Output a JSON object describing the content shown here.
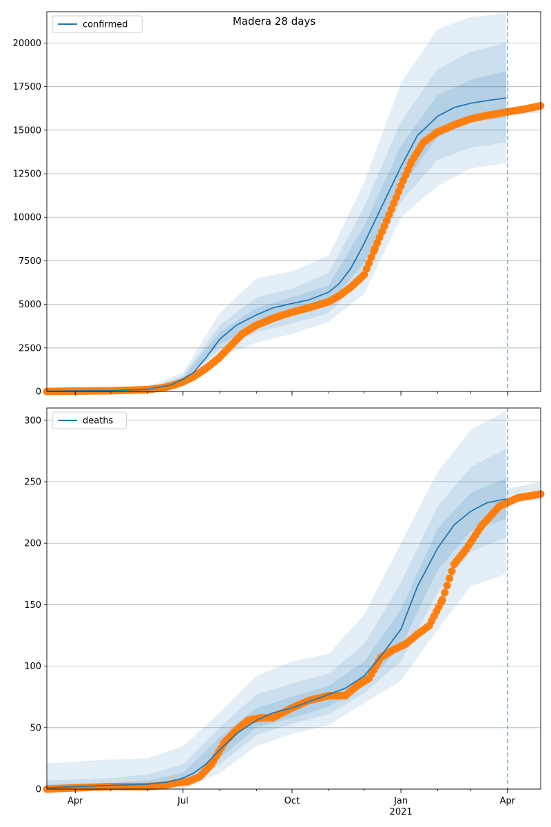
{
  "figure": {
    "title": "Madera 28 days"
  },
  "colors": {
    "model_line": "#1f77b4",
    "observed": "#ff7f0e",
    "band": "#1f77b4",
    "grid": "#b0b0b0",
    "forecast_line": "#1f77b4"
  },
  "forecast_start": "2021-04-01",
  "chart_data": [
    {
      "type": "line",
      "legend_label": "confirmed",
      "legend_position": "upper left",
      "grid": "horizontal",
      "xlim": [
        "2020-03-08",
        "2021-04-29"
      ],
      "ylim": [
        0,
        21800
      ],
      "yticks": [
        0,
        2500,
        5000,
        7500,
        10000,
        12500,
        15000,
        17500,
        20000
      ],
      "x_tick_labels": [],
      "model": {
        "name": "confirmed",
        "x": [
          "2020-03-08",
          "2020-04-01",
          "2020-05-01",
          "2020-06-01",
          "2020-06-20",
          "2020-07-01",
          "2020-07-10",
          "2020-07-20",
          "2020-08-01",
          "2020-08-15",
          "2020-09-01",
          "2020-09-15",
          "2020-10-01",
          "2020-10-15",
          "2020-11-01",
          "2020-11-10",
          "2020-11-20",
          "2020-12-01",
          "2020-12-15",
          "2021-01-01",
          "2021-01-15",
          "2021-02-01",
          "2021-02-15",
          "2021-03-01",
          "2021-03-15",
          "2021-03-31"
        ],
        "y": [
          20,
          30,
          50,
          120,
          350,
          700,
          1100,
          1900,
          3000,
          3800,
          4400,
          4800,
          5050,
          5250,
          5700,
          6200,
          7100,
          8500,
          10500,
          12900,
          14700,
          15800,
          16300,
          16550,
          16700,
          16850
        ]
      },
      "bands": [
        {
          "level": "outer",
          "x": [
            "2020-03-08",
            "2020-06-01",
            "2020-07-01",
            "2020-08-01",
            "2020-09-01",
            "2020-10-01",
            "2020-11-01",
            "2020-12-01",
            "2021-01-01",
            "2021-02-01",
            "2021-03-01",
            "2021-03-31"
          ],
          "low": [
            0,
            80,
            500,
            2000,
            2800,
            3300,
            4000,
            5600,
            10000,
            11800,
            12800,
            13100
          ],
          "high": [
            60,
            250,
            1100,
            4500,
            6500,
            6900,
            7800,
            12000,
            17700,
            20800,
            21500,
            21700
          ]
        },
        {
          "level": "middle",
          "x": [
            "2020-03-08",
            "2020-06-01",
            "2020-07-01",
            "2020-08-01",
            "2020-09-01",
            "2020-10-01",
            "2020-11-01",
            "2020-12-01",
            "2021-01-01",
            "2021-02-01",
            "2021-03-01",
            "2021-03-31"
          ],
          "low": [
            5,
            100,
            600,
            2400,
            3400,
            3900,
            4500,
            6700,
            10900,
            13300,
            14000,
            14300
          ],
          "high": [
            40,
            180,
            900,
            3800,
            5400,
            5900,
            6800,
            10600,
            15500,
            18500,
            19500,
            20000
          ]
        },
        {
          "level": "inner",
          "x": [
            "2020-03-08",
            "2020-06-01",
            "2020-07-01",
            "2020-08-01",
            "2020-09-01",
            "2020-10-01",
            "2020-11-01",
            "2020-12-01",
            "2021-01-01",
            "2021-02-01",
            "2021-03-01",
            "2021-03-31"
          ],
          "low": [
            10,
            110,
            650,
            2700,
            3800,
            4400,
            5000,
            7400,
            11700,
            14600,
            15500,
            15700
          ],
          "high": [
            30,
            150,
            800,
            3400,
            4800,
            5400,
            6100,
            9500,
            14100,
            17000,
            17900,
            18400
          ]
        }
      ],
      "future_band": {
        "x": [
          "2021-03-31",
          "2021-04-29"
        ],
        "low": [
          15900,
          16000
        ],
        "high": [
          16300,
          16500
        ]
      },
      "observed": {
        "name": "observed",
        "x": [
          "2020-03-08",
          "2020-04-01",
          "2020-05-01",
          "2020-06-01",
          "2020-06-15",
          "2020-06-25",
          "2020-07-01",
          "2020-07-10",
          "2020-07-20",
          "2020-07-31",
          "2020-08-10",
          "2020-08-20",
          "2020-09-01",
          "2020-09-15",
          "2020-10-01",
          "2020-10-15",
          "2020-11-01",
          "2020-11-10",
          "2020-11-20",
          "2020-12-01",
          "2020-12-10",
          "2020-12-20",
          "2021-01-01",
          "2021-01-10",
          "2021-01-20",
          "2021-02-01",
          "2021-02-15",
          "2021-03-01",
          "2021-03-15",
          "2021-04-01",
          "2021-04-15",
          "2021-04-29"
        ],
        "y": [
          0,
          20,
          40,
          100,
          220,
          400,
          550,
          850,
          1300,
          1900,
          2600,
          3300,
          3800,
          4200,
          4550,
          4800,
          5150,
          5500,
          6000,
          6700,
          8200,
          9800,
          11800,
          13200,
          14300,
          14900,
          15300,
          15650,
          15850,
          16050,
          16200,
          16400
        ]
      }
    },
    {
      "type": "line",
      "legend_label": "deaths",
      "legend_position": "upper left",
      "grid": "horizontal",
      "xlim": [
        "2020-03-08",
        "2021-04-29"
      ],
      "ylim": [
        0,
        310
      ],
      "yticks": [
        0,
        50,
        100,
        150,
        200,
        250,
        300
      ],
      "x_tick_labels": [
        {
          "date": "2020-04-01",
          "label": "Apr",
          "sub": ""
        },
        {
          "date": "2020-07-01",
          "label": "Jul",
          "sub": ""
        },
        {
          "date": "2020-10-01",
          "label": "Oct",
          "sub": ""
        },
        {
          "date": "2021-01-01",
          "label": "Jan",
          "sub": "2021"
        },
        {
          "date": "2021-04-01",
          "label": "Apr",
          "sub": ""
        }
      ],
      "model": {
        "name": "deaths",
        "x": [
          "2020-03-08",
          "2020-04-01",
          "2020-05-01",
          "2020-06-01",
          "2020-06-20",
          "2020-07-01",
          "2020-07-10",
          "2020-07-20",
          "2020-08-01",
          "2020-08-15",
          "2020-09-01",
          "2020-09-15",
          "2020-10-01",
          "2020-10-15",
          "2020-11-01",
          "2020-11-15",
          "2020-12-01",
          "2020-12-15",
          "2021-01-01",
          "2021-01-15",
          "2021-02-01",
          "2021-02-15",
          "2021-03-01",
          "2021-03-15",
          "2021-03-31"
        ],
        "y": [
          1,
          2,
          3,
          4,
          6,
          9,
          13,
          20,
          32,
          45,
          56,
          62,
          66,
          71,
          77,
          82,
          92,
          108,
          130,
          165,
          196,
          215,
          226,
          233,
          236
        ]
      },
      "bands": [
        {
          "level": "outer",
          "x": [
            "2020-03-08",
            "2020-05-01",
            "2020-06-01",
            "2020-07-01",
            "2020-08-01",
            "2020-09-01",
            "2020-10-01",
            "2020-11-01",
            "2020-12-01",
            "2021-01-01",
            "2021-02-01",
            "2021-03-01",
            "2021-03-31"
          ],
          "low": [
            0,
            0,
            0,
            0,
            13,
            35,
            45,
            52,
            70,
            88,
            130,
            165,
            175
          ],
          "high": [
            21,
            24,
            25,
            35,
            62,
            92,
            104,
            110,
            142,
            200,
            258,
            292,
            308
          ]
        },
        {
          "level": "middle",
          "x": [
            "2020-03-08",
            "2020-05-01",
            "2020-06-01",
            "2020-07-01",
            "2020-08-01",
            "2020-09-01",
            "2020-10-01",
            "2020-11-01",
            "2020-12-01",
            "2021-01-01",
            "2021-02-01",
            "2021-03-01",
            "2021-03-31"
          ],
          "low": [
            0,
            0,
            1,
            3,
            20,
            44,
            53,
            61,
            78,
            104,
            160,
            193,
            205
          ],
          "high": [
            7,
            9,
            12,
            20,
            50,
            77,
            86,
            94,
            118,
            168,
            230,
            262,
            277
          ]
        },
        {
          "level": "inner",
          "x": [
            "2020-03-08",
            "2020-05-01",
            "2020-06-01",
            "2020-07-01",
            "2020-08-01",
            "2020-09-01",
            "2020-10-01",
            "2020-11-01",
            "2020-12-01",
            "2021-01-01",
            "2021-02-01",
            "2021-03-01",
            "2021-03-31"
          ],
          "low": [
            0,
            1,
            2,
            5,
            25,
            50,
            58,
            67,
            84,
            116,
            178,
            210,
            220
          ],
          "high": [
            4,
            5,
            7,
            13,
            42,
            66,
            75,
            84,
            104,
            146,
            212,
            241,
            253
          ]
        }
      ],
      "future_band": {
        "x": [
          "2021-03-31",
          "2021-04-29"
        ],
        "low": [
          233,
          235
        ],
        "high": [
          244,
          250
        ]
      },
      "observed": {
        "name": "observed",
        "x": [
          "2020-03-08",
          "2020-04-01",
          "2020-05-01",
          "2020-06-01",
          "2020-06-15",
          "2020-06-25",
          "2020-07-05",
          "2020-07-15",
          "2020-07-25",
          "2020-08-05",
          "2020-08-15",
          "2020-08-25",
          "2020-09-05",
          "2020-09-15",
          "2020-10-01",
          "2020-10-15",
          "2020-11-01",
          "2020-11-15",
          "2020-11-25",
          "2020-12-05",
          "2020-12-15",
          "2020-12-25",
          "2021-01-05",
          "2021-01-15",
          "2021-01-25",
          "2021-02-05",
          "2021-02-15",
          "2021-02-25",
          "2021-03-10",
          "2021-03-25",
          "2021-04-10",
          "2021-04-29"
        ],
        "y": [
          0,
          1,
          2,
          2,
          3,
          5,
          6,
          10,
          20,
          38,
          48,
          56,
          58,
          58,
          66,
          72,
          76,
          76,
          84,
          90,
          107,
          113,
          118,
          126,
          133,
          154,
          183,
          195,
          214,
          230,
          237,
          240
        ]
      }
    }
  ]
}
